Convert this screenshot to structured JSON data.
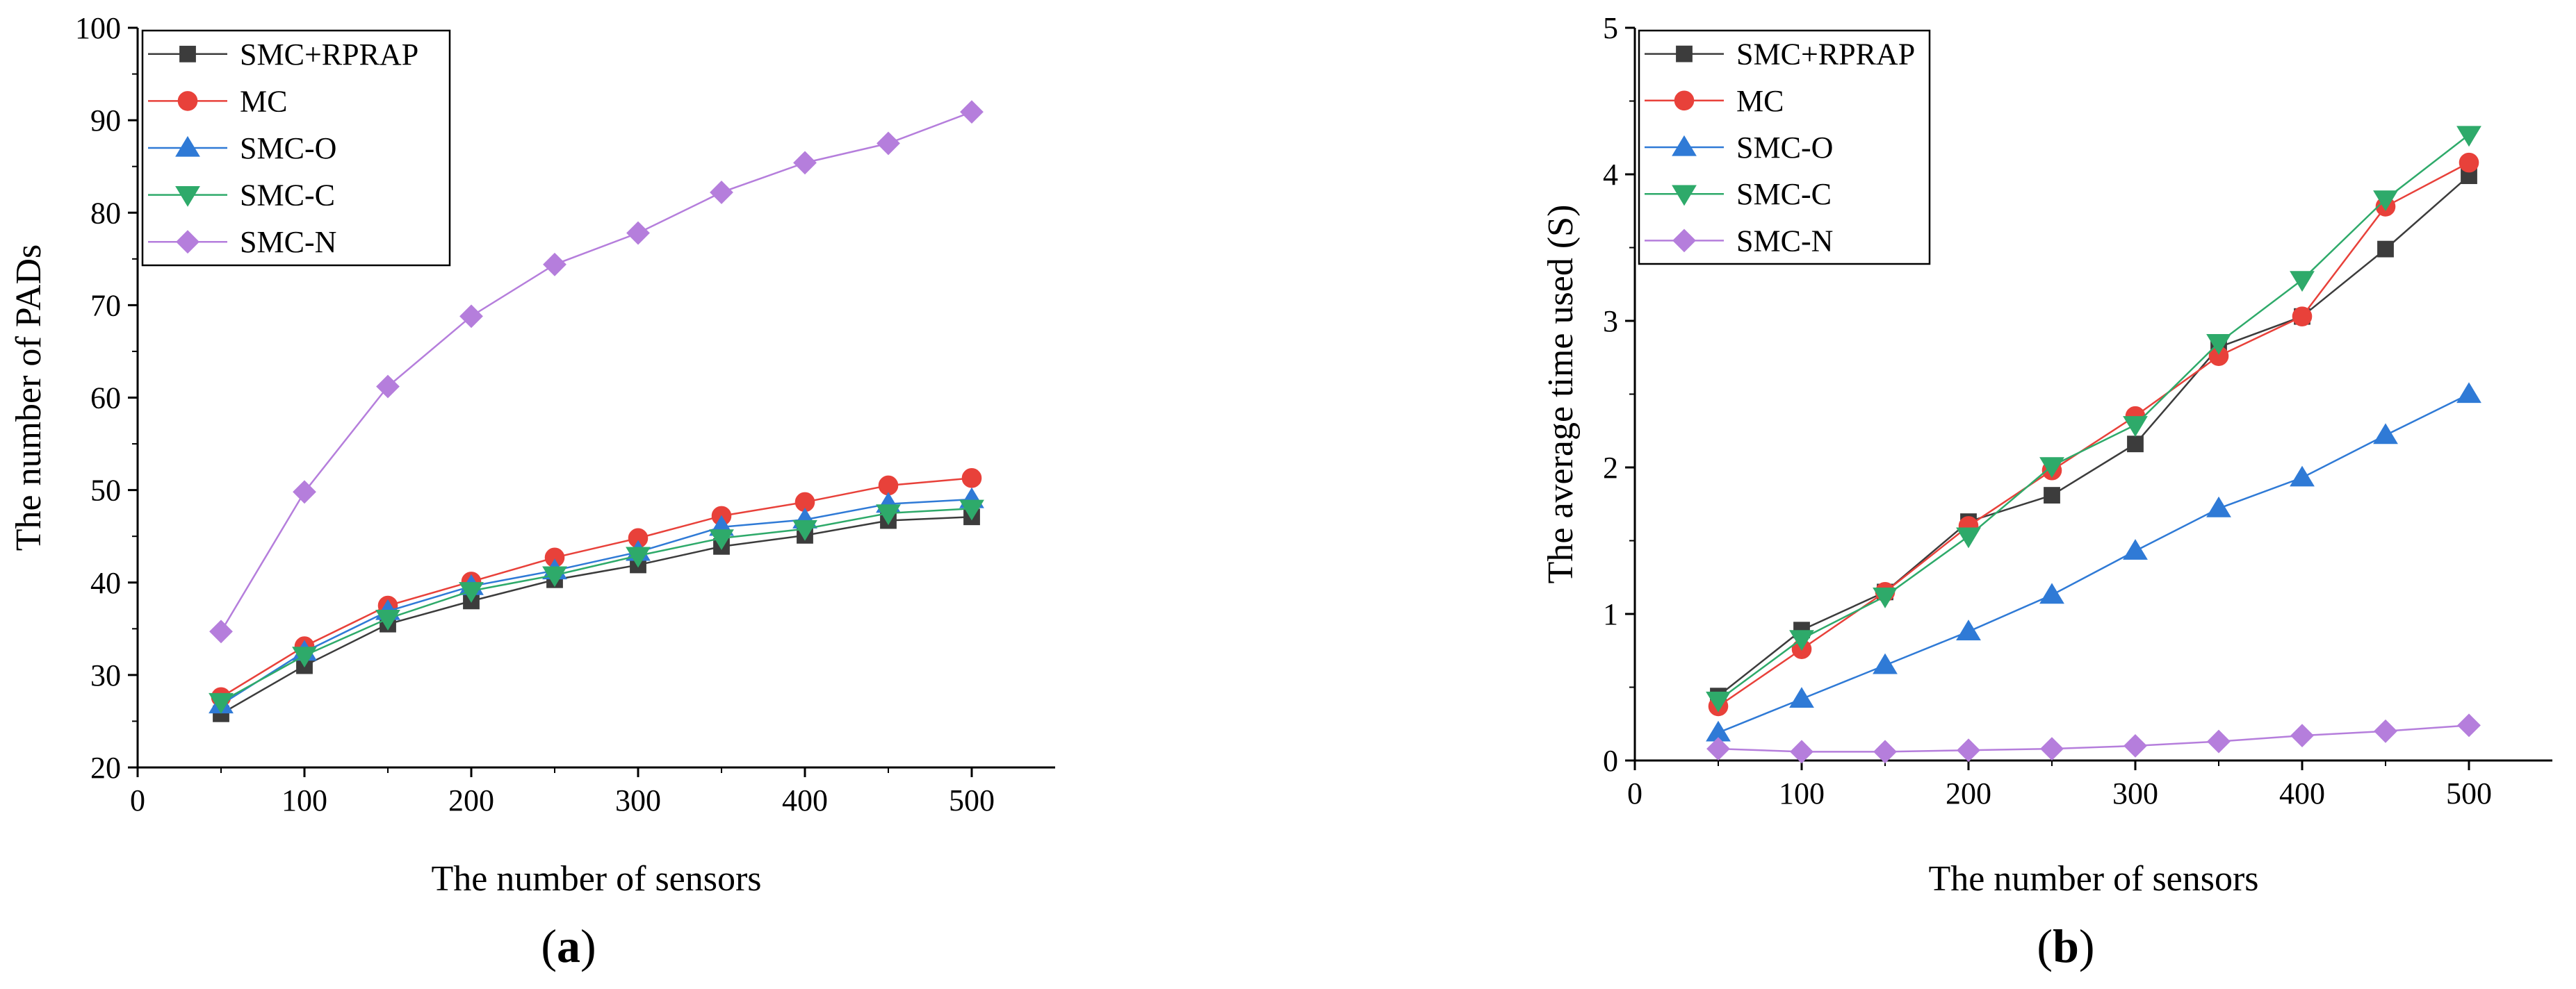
{
  "chart_data": [
    {
      "type": "line",
      "panel_label": {
        "open": "(",
        "letter": "a",
        "close": ")"
      },
      "title": "",
      "xlabel": "The number of sensors",
      "ylabel": "The number of PADs",
      "xlim": [
        0,
        550
      ],
      "ylim": [
        20,
        100
      ],
      "xticks": [
        0,
        100,
        200,
        300,
        400,
        500
      ],
      "yticks": [
        20,
        30,
        40,
        50,
        60,
        70,
        80,
        90,
        100
      ],
      "grid": false,
      "legend_position": "top-left",
      "x": [
        50,
        100,
        150,
        200,
        250,
        300,
        350,
        400,
        450,
        500
      ],
      "series": [
        {
          "name": "SMC+RPRAP",
          "color": "#3c3c3c",
          "marker": "square",
          "values": [
            25.8,
            31.0,
            35.5,
            38.0,
            40.3,
            41.9,
            43.9,
            45.1,
            46.7,
            47.1
          ]
        },
        {
          "name": "MC",
          "color": "#e8413a",
          "marker": "circle",
          "values": [
            27.6,
            33.1,
            37.5,
            40.1,
            42.7,
            44.8,
            47.2,
            48.7,
            50.5,
            51.3
          ]
        },
        {
          "name": "SMC-O",
          "color": "#2f7ad6",
          "marker": "triangle-up",
          "values": [
            26.8,
            32.5,
            36.9,
            39.6,
            41.3,
            43.3,
            46.0,
            46.8,
            48.5,
            49.0
          ]
        },
        {
          "name": "SMC-C",
          "color": "#2eaa6a",
          "marker": "triangle-down",
          "values": [
            27.1,
            32.1,
            36.1,
            39.1,
            40.8,
            42.9,
            44.8,
            45.8,
            47.5,
            48.0
          ]
        },
        {
          "name": "SMC-N",
          "color": "#b57edc",
          "marker": "diamond",
          "values": [
            34.7,
            49.8,
            61.2,
            68.8,
            74.4,
            77.8,
            82.2,
            85.4,
            87.5,
            90.9
          ]
        }
      ]
    },
    {
      "type": "line",
      "panel_label": {
        "open": "(",
        "letter": "b",
        "close": ")"
      },
      "title": "",
      "xlabel": "The number of sensors",
      "ylabel": "The average time used (S)",
      "xlim": [
        0,
        550
      ],
      "ylim": [
        0,
        5
      ],
      "xticks": [
        0,
        100,
        200,
        300,
        400,
        500
      ],
      "yticks": [
        0,
        1,
        2,
        3,
        4,
        5
      ],
      "grid": false,
      "legend_position": "top-left",
      "x": [
        50,
        100,
        150,
        200,
        250,
        300,
        350,
        400,
        450,
        500
      ],
      "series": [
        {
          "name": "SMC+RPRAP",
          "color": "#3c3c3c",
          "marker": "square",
          "values": [
            0.44,
            0.89,
            1.15,
            1.63,
            1.81,
            2.16,
            2.82,
            3.03,
            3.49,
            3.99
          ]
        },
        {
          "name": "MC",
          "color": "#e8413a",
          "marker": "circle",
          "values": [
            0.37,
            0.76,
            1.15,
            1.6,
            1.98,
            2.35,
            2.76,
            3.03,
            3.78,
            4.08
          ]
        },
        {
          "name": "SMC-O",
          "color": "#2f7ad6",
          "marker": "triangle-up",
          "values": [
            0.19,
            0.42,
            0.65,
            0.88,
            1.13,
            1.43,
            1.72,
            1.93,
            2.22,
            2.5
          ]
        },
        {
          "name": "SMC-C",
          "color": "#2eaa6a",
          "marker": "triangle-down",
          "values": [
            0.41,
            0.83,
            1.12,
            1.53,
            2.01,
            2.29,
            2.85,
            3.28,
            3.83,
            4.27
          ]
        },
        {
          "name": "SMC-N",
          "color": "#b57edc",
          "marker": "diamond",
          "values": [
            0.08,
            0.06,
            0.06,
            0.07,
            0.08,
            0.1,
            0.13,
            0.17,
            0.2,
            0.24
          ]
        }
      ]
    }
  ]
}
